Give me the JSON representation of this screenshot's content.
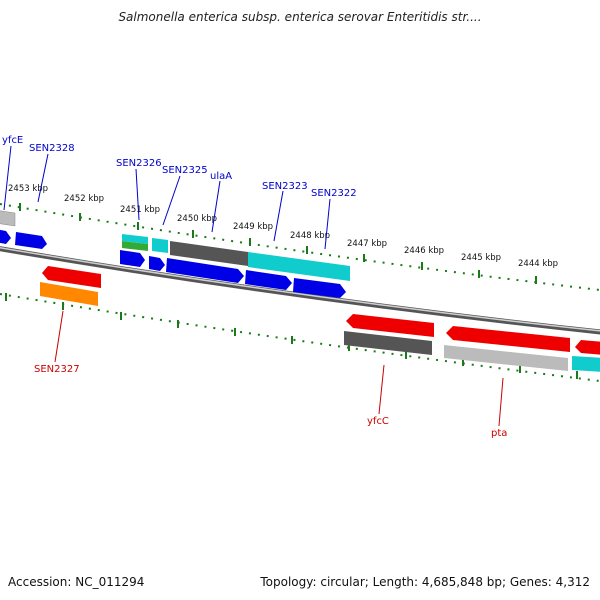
{
  "header": {
    "title": "Salmonella enterica subsp. enterica serovar Enteritidis str...."
  },
  "footer": {
    "accession": "Accession: NC_011294",
    "summary": "Topology: circular; Length: 4,685,848 bp; Genes: 4,312"
  },
  "ruler": {
    "ticks": [
      "2453 kbp",
      "2452 kbp",
      "2451 kbp",
      "2450 kbp",
      "2449 kbp",
      "2448 kbp",
      "2447 kbp",
      "2446 kbp",
      "2445 kbp",
      "2444 kbp"
    ]
  },
  "genes": {
    "forward_labels": [
      "yfcE",
      "SEN2328",
      "SEN2326",
      "SEN2325",
      "ulaA",
      "SEN2323",
      "SEN2322"
    ],
    "reverse_labels": [
      "SEN2327",
      "yfcC",
      "pta"
    ]
  },
  "colors": {
    "forward_label": "#0000cc",
    "reverse_label": "#cc0000",
    "tick": "#1a7a1a",
    "backbone": "#8a8a8a",
    "blue_feature": "#0000e6",
    "red_feature": "#ee0000",
    "cyan_feature": "#11cccc",
    "gray_feature": "#555555",
    "lightgray_feature": "#bbbbbb",
    "orange_feature": "#ff8800",
    "green_feature": "#33aa33"
  }
}
